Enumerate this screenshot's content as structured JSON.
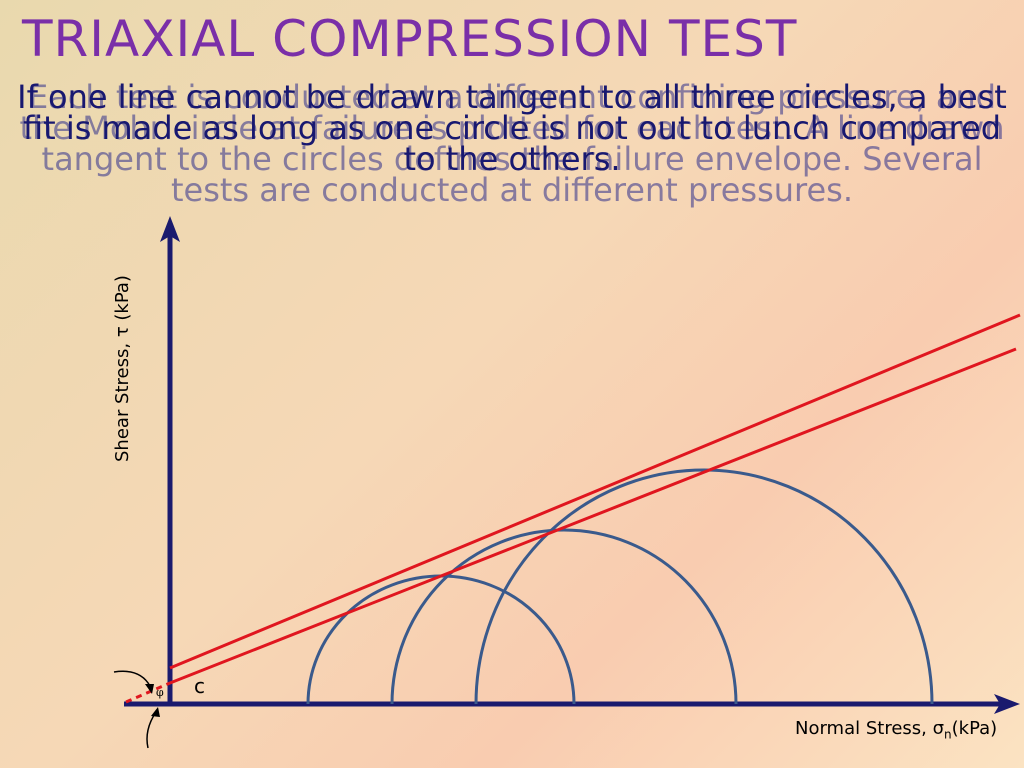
{
  "title": "TRIAXIAL COMPRESSION TEST",
  "overlay_paragraphs": [
    "If one line cannot be drawn tangent to all three circles, a best fit is made as long as one circle is not out to lunch compared to the others.",
    "Each test is conducted at a different confining pressure, and the Mohr circle at failure is plotted for each test. A line drawn tangent to the circles defines the failure envelope. Several tests are conducted at different pressures."
  ],
  "diagram": {
    "y_axis_label": "Shear Stress, τ (kPa)",
    "x_axis_label_main": "Normal Stress, σ",
    "x_axis_label_sub": "n",
    "x_axis_label_unit": "(kPa)",
    "cohesion_label": "c",
    "friction_angle_label": "φ",
    "colors": {
      "axis": "#1a1a6e",
      "circle": "#3a5a8c",
      "envelope": "#e0161f",
      "title": "#7a2fa8",
      "text": "#181870"
    }
  }
}
